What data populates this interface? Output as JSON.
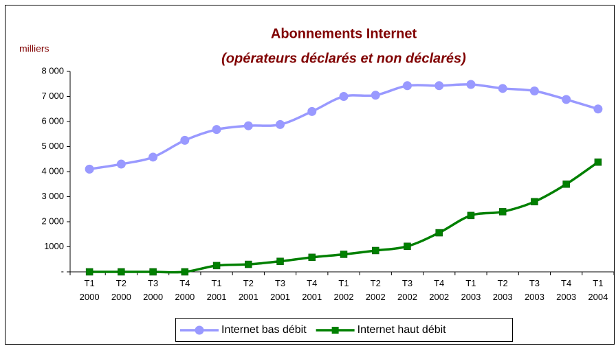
{
  "chart_data": {
    "type": "line",
    "title": "Abonnements Internet",
    "subtitle": "(opérateurs déclarés et non déclarés)",
    "y_label": "milliers",
    "categories": [
      "T1 2000",
      "T2 2000",
      "T3 2000",
      "T4 2000",
      "T1 2001",
      "T2 2001",
      "T3 2001",
      "T4 2001",
      "T1 2002",
      "T2 2002",
      "T3 2002",
      "T4 2002",
      "T1 2003",
      "T2 2003",
      "T3 2003",
      "T4 2003",
      "T1 2004"
    ],
    "series": [
      {
        "name": "Internet bas débit",
        "color": "#9999ff",
        "marker": "circle",
        "values": [
          4100,
          4300,
          4580,
          5250,
          5680,
          5830,
          5880,
          6400,
          7000,
          7050,
          7430,
          7430,
          7480,
          7320,
          7220,
          6880,
          6500
        ]
      },
      {
        "name": "Internet haut débit",
        "color": "#008000",
        "marker": "square",
        "values": [
          0,
          0,
          0,
          0,
          250,
          300,
          420,
          580,
          700,
          850,
          1020,
          1560,
          2250,
          2400,
          2800,
          3500,
          4380
        ]
      }
    ],
    "ylim": [
      0,
      8000
    ],
    "yticks": [
      {
        "value": 0,
        "label": "-"
      },
      1000,
      {
        "value": 2000,
        "label": "2 000"
      },
      {
        "value": 3000,
        "label": "3 000"
      },
      {
        "value": 4000,
        "label": "4 000"
      },
      {
        "value": 5000,
        "label": "5 000"
      },
      {
        "value": 6000,
        "label": "6 000"
      },
      {
        "value": 7000,
        "label": "7 000"
      },
      {
        "value": 8000,
        "label": "8 000"
      }
    ],
    "grid": false
  }
}
